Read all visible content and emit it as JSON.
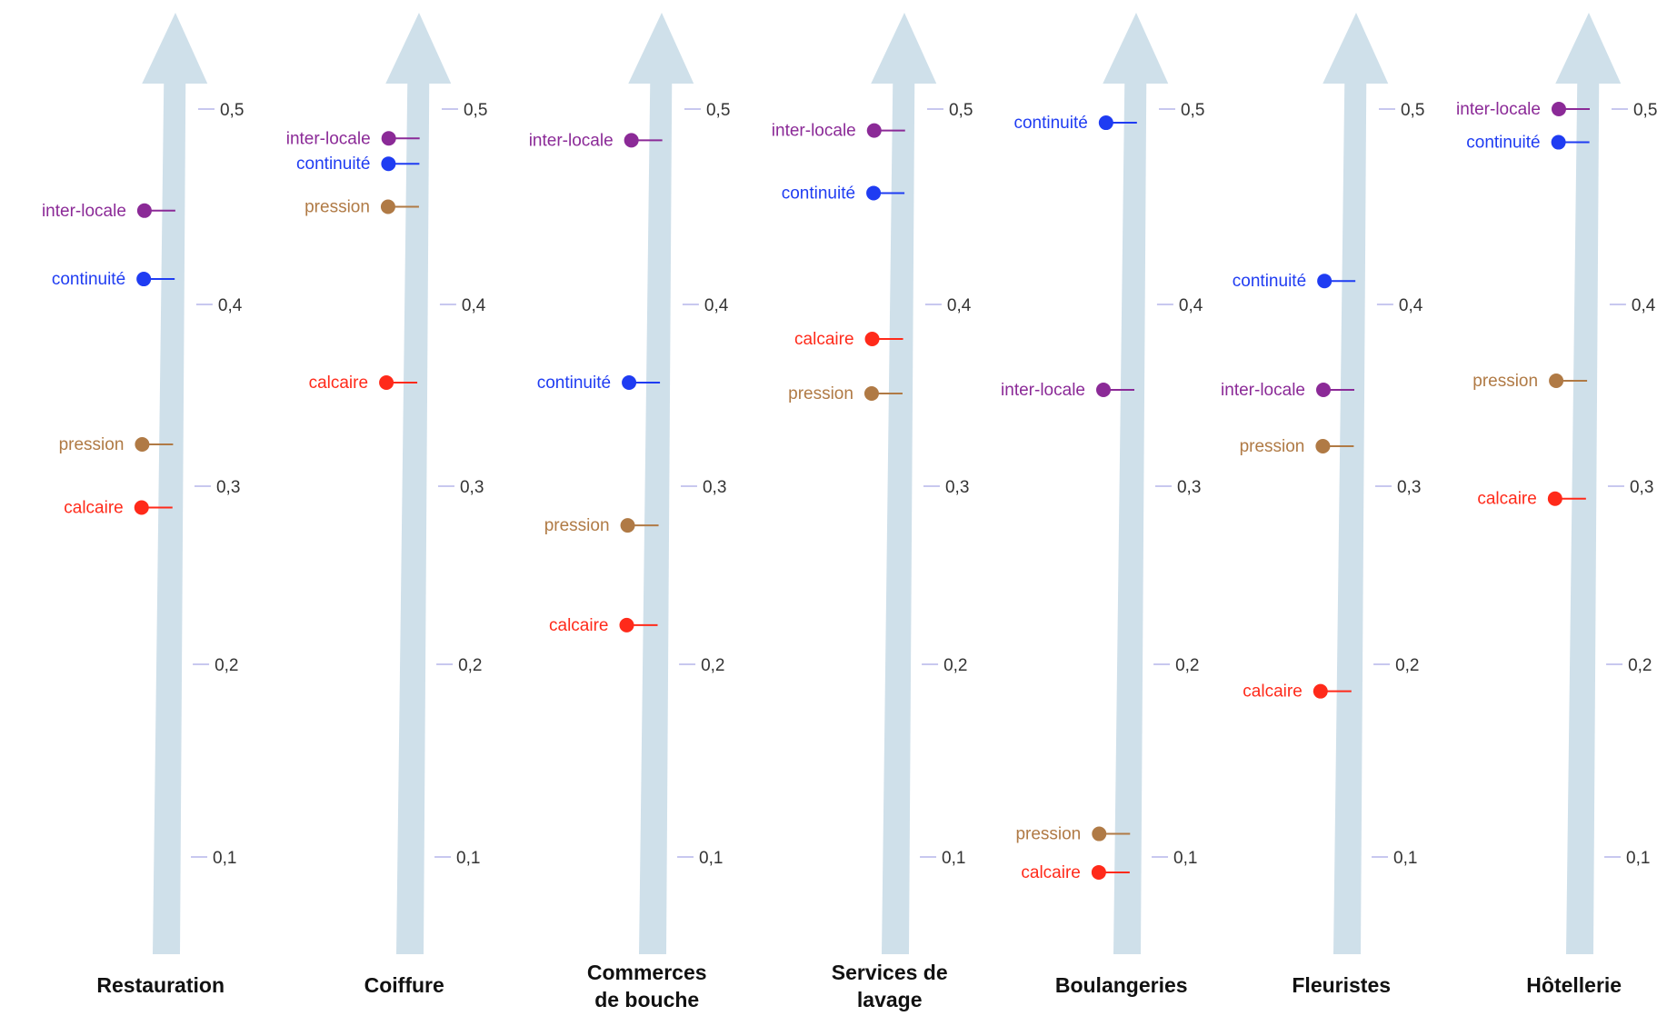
{
  "chart_data": {
    "type": "scatter",
    "ylim": [
      0,
      0.5
    ],
    "y_ticks": [
      {
        "value": 0.1,
        "label": "0,1"
      },
      {
        "value": 0.2,
        "label": "0,2"
      },
      {
        "value": 0.3,
        "label": "0,3"
      },
      {
        "value": 0.4,
        "label": "0,4"
      },
      {
        "value": 0.5,
        "label": "0,5"
      }
    ],
    "series_colors": {
      "inter-locale": "#8b2a97",
      "continuité": "#1f3cf2",
      "pression": "#b07a45",
      "calcaire": "#ff2a1a"
    },
    "axis_color": "#cfe0ea",
    "categories": [
      {
        "name_lines": [
          "Restauration"
        ],
        "points": [
          {
            "label": "inter-locale",
            "value": 0.448
          },
          {
            "label": "continuité",
            "value": 0.413
          },
          {
            "label": "pression",
            "value": 0.323
          },
          {
            "label": "calcaire",
            "value": 0.288
          }
        ]
      },
      {
        "name_lines": [
          "Coiffure"
        ],
        "points": [
          {
            "label": "inter-locale",
            "value": 0.485
          },
          {
            "label": "continuité",
            "value": 0.472
          },
          {
            "label": "pression",
            "value": 0.45
          },
          {
            "label": "calcaire",
            "value": 0.357
          }
        ]
      },
      {
        "name_lines": [
          "Commerces",
          "de bouche"
        ],
        "points": [
          {
            "label": "inter-locale",
            "value": 0.484
          },
          {
            "label": "continuité",
            "value": 0.357
          },
          {
            "label": "pression",
            "value": 0.278
          },
          {
            "label": "calcaire",
            "value": 0.222
          }
        ]
      },
      {
        "name_lines": [
          "Services de",
          "lavage"
        ],
        "points": [
          {
            "label": "inter-locale",
            "value": 0.489
          },
          {
            "label": "continuité",
            "value": 0.457
          },
          {
            "label": "calcaire",
            "value": 0.381
          },
          {
            "label": "pression",
            "value": 0.351
          }
        ]
      },
      {
        "name_lines": [
          "Boulangeries"
        ],
        "points": [
          {
            "label": "continuité",
            "value": 0.493
          },
          {
            "label": "inter-locale",
            "value": 0.353
          },
          {
            "label": "pression",
            "value": 0.112
          },
          {
            "label": "calcaire",
            "value": 0.092
          }
        ]
      },
      {
        "name_lines": [
          "Fleuristes"
        ],
        "points": [
          {
            "label": "continuité",
            "value": 0.412
          },
          {
            "label": "inter-locale",
            "value": 0.353
          },
          {
            "label": "pression",
            "value": 0.322
          },
          {
            "label": "calcaire",
            "value": 0.186
          }
        ]
      },
      {
        "name_lines": [
          "Hôtellerie"
        ],
        "points": [
          {
            "label": "inter-locale",
            "value": 0.5
          },
          {
            "label": "continuité",
            "value": 0.483
          },
          {
            "label": "pression",
            "value": 0.358
          },
          {
            "label": "calcaire",
            "value": 0.293
          }
        ]
      }
    ]
  }
}
